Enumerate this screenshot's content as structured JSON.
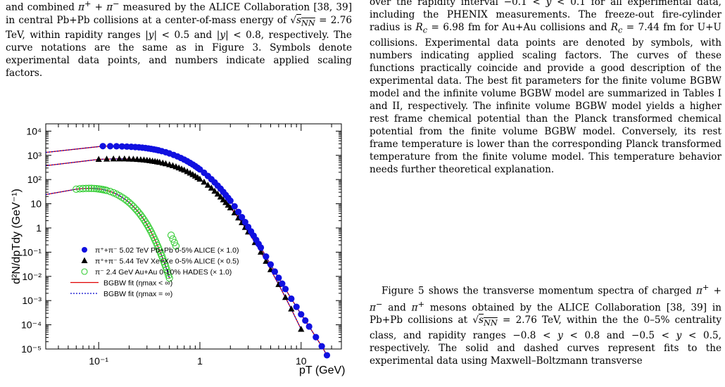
{
  "caption": {
    "text": "and combined π⁺ + π⁻ measured by the ALICE Collaboration [38, 39] in central Pb+Pb collisions at a center-of-mass energy of √sNN = 2.76 TeV, within rapidity ranges |y| < 0.5 and |y| < 0.8, respectively. The curve notations are the same as in Figure 3. Symbols denote experimental data points, and numbers indicate applied scaling factors."
  },
  "right_column": {
    "paragraph1": "over the rapidity interval −0.1 < y < 0.1 for all experimental data, including the PHENIX measurements. The freeze-out fire-cylinder radius is Rc = 6.98 fm for Au+Au collisions and Rc = 7.44 fm for U+U collisions. Experimental data points are denoted by symbols, with numbers indicating applied scaling factors. The curves of these functions practically coincide and provide a good description of the experimental data. The best fit parameters for the finite volume BGBW model and the infinite volume BGBW model are summarized in Tables I and II, respectively. The infinite volume BGBW model yields a higher rest frame chemical potential than the Planck transformed chemical potential from the finite volume BGBW model. Conversely, its rest frame temperature is lower than the corresponding Planck transformed temperature from the finite volume model. This temperature behavior needs further theoretical explanation.",
    "paragraph2": "Figure 5 shows the transverse momentum spectra of charged π⁺ + π⁻ and π⁺ mesons obtained by the ALICE Collaboration [38, 39] in Pb+Pb collisions at √sNN = 2.76 TeV, within the the 0–5% centrality class, and rapidity ranges −0.8 < y < 0.8 and −0.5 < y < 0.5, respectively. The solid and dashed curves represent fits to the experimental data using Maxwell–Boltzmann transverse"
  },
  "chart_data": {
    "type": "scatter",
    "log_x": true,
    "log_y": true,
    "xlim": [
      0.03,
      25
    ],
    "ylim": [
      1e-05,
      20000
    ],
    "xlabel": "pT (GeV)",
    "ylabel": "d²N/dpTdy (GeV⁻¹)",
    "x_ticks": [
      "10⁻¹",
      "1",
      "10"
    ],
    "y_ticks": [
      "10⁻⁵",
      "10⁻⁴",
      "10⁻³",
      "10⁻²",
      "10⁻¹",
      "1",
      "10",
      "10²",
      "10³",
      "10⁴"
    ],
    "legend_position": "bottom-left",
    "colors": {
      "alice_pbpb": "#1010e0",
      "alice_xexe": "#000000",
      "hades": "#33cc33",
      "fit_finite": "#e00000",
      "fit_infinite": "#0000cc"
    },
    "series": [
      {
        "name": "π⁺+π⁻ 5.02 TeV Pb+Pb 0-5% ALICE (× 1.0)",
        "marker": "filled-circle",
        "x": [
          0.11,
          0.13,
          0.15,
          0.17,
          0.19,
          0.21,
          0.23,
          0.25,
          0.27,
          0.29,
          0.31,
          0.33,
          0.35,
          0.37,
          0.39,
          0.42,
          0.46,
          0.5,
          0.55,
          0.6,
          0.65,
          0.7,
          0.75,
          0.8,
          0.85,
          0.9,
          0.95,
          1.0,
          1.1,
          1.2,
          1.3,
          1.4,
          1.5,
          1.6,
          1.7,
          1.8,
          1.9,
          2.0,
          2.2,
          2.4,
          2.6,
          2.8,
          3.0,
          3.2,
          3.4,
          3.6,
          3.8,
          4.0,
          4.5,
          5.0,
          5.5,
          6.0,
          6.5,
          7.0,
          8.0,
          9.0,
          10.0,
          11.0,
          12.0,
          14.0,
          16.0,
          18.0
        ],
        "values": [
          2400,
          2390,
          2370,
          2340,
          2300,
          2250,
          2200,
          2140,
          2070,
          2000,
          1930,
          1850,
          1770,
          1690,
          1610,
          1490,
          1340,
          1200,
          1040,
          900,
          775,
          665,
          570,
          488,
          418,
          357,
          305,
          261,
          191,
          140,
          103,
          76,
          56,
          42,
          31,
          23,
          17.5,
          13.3,
          7.8,
          4.6,
          2.8,
          1.75,
          1.1,
          0.72,
          0.48,
          0.32,
          0.22,
          0.155,
          0.066,
          0.031,
          0.0158,
          0.0087,
          0.005,
          0.003,
          0.0012,
          0.00055,
          0.00027,
          0.00015,
          8.5e-05,
          3.1e-05,
          1.3e-05,
          5.5e-06
        ]
      },
      {
        "name": "π⁺+π⁻ 5.44 TeV Xe+Xe 0-5% ALICE (× 0.5)",
        "marker": "filled-triangle",
        "x": [
          0.1,
          0.12,
          0.14,
          0.16,
          0.18,
          0.2,
          0.22,
          0.24,
          0.26,
          0.28,
          0.3,
          0.32,
          0.34,
          0.36,
          0.38,
          0.4,
          0.43,
          0.46,
          0.5,
          0.54,
          0.58,
          0.62,
          0.66,
          0.7,
          0.75,
          0.8,
          0.85,
          0.9,
          0.95,
          1.0,
          1.1,
          1.2,
          1.3,
          1.4,
          1.5,
          1.6,
          1.7,
          1.8,
          1.9,
          2.0,
          2.2,
          2.4,
          2.6,
          2.8,
          3.0,
          3.5,
          4.0,
          4.5,
          5.0,
          6.0,
          7.0,
          8.0,
          10.0
        ],
        "values": [
          680,
          700,
          710,
          712,
          710,
          700,
          690,
          675,
          660,
          640,
          620,
          600,
          578,
          556,
          534,
          512,
          480,
          450,
          410,
          372,
          336,
          302,
          272,
          245,
          213,
          185,
          160,
          139,
          120,
          104,
          78,
          58,
          44,
          33,
          25,
          19,
          14.5,
          11.2,
          8.7,
          6.8,
          4.2,
          2.6,
          1.65,
          1.05,
          0.68,
          0.25,
          0.1,
          0.042,
          0.019,
          0.0046,
          0.00135,
          0.00045,
          6.5e-05
        ]
      },
      {
        "name": "π⁻ 2.4 GeV Au+Au 0-10% HADES (× 1.0)",
        "marker": "open-circle",
        "x": [
          0.06,
          0.065,
          0.07,
          0.075,
          0.08,
          0.085,
          0.09,
          0.095,
          0.1,
          0.105,
          0.11,
          0.115,
          0.12,
          0.13,
          0.14,
          0.15,
          0.16,
          0.17,
          0.18,
          0.19,
          0.2,
          0.21,
          0.22,
          0.23,
          0.24,
          0.25,
          0.26,
          0.27,
          0.28,
          0.29,
          0.3,
          0.31,
          0.32,
          0.33,
          0.34,
          0.35,
          0.36,
          0.37,
          0.38,
          0.39,
          0.4,
          0.41,
          0.42,
          0.43,
          0.44,
          0.45,
          0.46,
          0.47,
          0.48,
          0.49,
          0.5,
          0.52,
          0.54,
          0.56,
          0.58
        ],
        "values": [
          40,
          41.5,
          42.5,
          43,
          43.3,
          43.2,
          42.8,
          42,
          41,
          39.8,
          38.5,
          37,
          35.5,
          32,
          28.5,
          25,
          21.5,
          18.5,
          15.8,
          13.4,
          11.2,
          9.3,
          7.7,
          6.3,
          5.2,
          4.2,
          3.4,
          2.75,
          2.2,
          1.75,
          1.4,
          1.1,
          0.87,
          0.68,
          0.53,
          0.41,
          0.32,
          0.25,
          0.19,
          0.15,
          0.115,
          0.09,
          0.07,
          0.053,
          0.041,
          0.032,
          0.025,
          0.019,
          0.0145,
          0.011,
          0.0085,
          0.5,
          0.35,
          0.25,
          0.18
        ]
      }
    ],
    "fit_lines": [
      {
        "name": "BGBW fit (ηmax < ∞)",
        "style": "solid"
      },
      {
        "name": "BGBW fit (ηmax = ∞)",
        "style": "dotted"
      }
    ]
  }
}
